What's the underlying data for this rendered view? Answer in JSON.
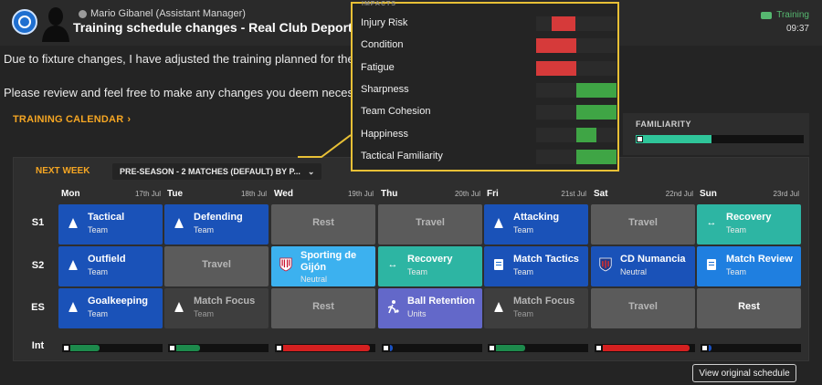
{
  "header": {
    "sender": "Mario Gibanel  (Assistant Manager)",
    "subject": "Training schedule changes - Real Club Deportivo de",
    "tag": "Training",
    "time": "09:37"
  },
  "message": {
    "line1": "Due to fixture changes, I have adjusted the training planned for the w",
    "line2": "Please review and feel free to make any changes you deem necessary."
  },
  "calendar_title": "TRAINING CALENDAR",
  "familiarity": {
    "label": "FAMILIARITY",
    "level": 0.45
  },
  "panel": {
    "next_week": "NEXT WEEK",
    "preset": "PRE-SEASON - 2 MATCHES (DEFAULT) BY P..."
  },
  "days": [
    {
      "name": "Mon",
      "date": "17th Jul"
    },
    {
      "name": "Tue",
      "date": "18th Jul"
    },
    {
      "name": "Wed",
      "date": "19th Jul"
    },
    {
      "name": "Thu",
      "date": "20th Jul"
    },
    {
      "name": "Fri",
      "date": "21st Jul"
    },
    {
      "name": "Sat",
      "date": "22nd Jul"
    },
    {
      "name": "Sun",
      "date": "23rd Jul"
    }
  ],
  "rows": [
    {
      "label": "S1",
      "sessions": [
        {
          "title": "Tactical",
          "sub": "Team",
          "style": "blue",
          "icon": "cone-icon"
        },
        {
          "title": "Defending",
          "sub": "Team",
          "style": "blue",
          "icon": "cone-icon"
        },
        {
          "title": "Rest",
          "sub": "",
          "style": "grey",
          "icon": ""
        },
        {
          "title": "Travel",
          "sub": "",
          "style": "grey",
          "icon": ""
        },
        {
          "title": "Attacking",
          "sub": "Team",
          "style": "blue",
          "icon": "cone-icon"
        },
        {
          "title": "Travel",
          "sub": "",
          "style": "grey",
          "icon": ""
        },
        {
          "title": "Recovery",
          "sub": "Team",
          "style": "teal",
          "icon": "recovery-arrows-icon"
        }
      ]
    },
    {
      "label": "S2",
      "sessions": [
        {
          "title": "Outfield",
          "sub": "Team",
          "style": "blue",
          "icon": "cone-icon"
        },
        {
          "title": "Travel",
          "sub": "",
          "style": "grey",
          "icon": ""
        },
        {
          "title": "Sporting de Gijón",
          "sub": "Neutral",
          "style": "lightblue",
          "icon": "sporting-gijon-crest-icon"
        },
        {
          "title": "Recovery",
          "sub": "Team",
          "style": "teal",
          "icon": "recovery-arrows-icon"
        },
        {
          "title": "Match Tactics",
          "sub": "Team",
          "style": "blue",
          "icon": "match-document-icon"
        },
        {
          "title": "CD Numancia",
          "sub": "Neutral",
          "style": "blue",
          "icon": "numancia-crest-icon"
        },
        {
          "title": "Match Review",
          "sub": "Team",
          "style": "brightblue",
          "icon": "match-document-icon"
        }
      ]
    },
    {
      "label": "ES",
      "sessions": [
        {
          "title": "Goalkeeping",
          "sub": "Team",
          "style": "blue",
          "icon": "cone-icon"
        },
        {
          "title": "Match Focus",
          "sub": "Team",
          "style": "darkgrey",
          "icon": "cone-icon"
        },
        {
          "title": "Rest",
          "sub": "",
          "style": "grey",
          "icon": ""
        },
        {
          "title": "Ball Retention",
          "sub": "Units",
          "style": "purple",
          "icon": "ball-retention-icon"
        },
        {
          "title": "Match Focus",
          "sub": "Team",
          "style": "darkgrey",
          "icon": "cone-icon"
        },
        {
          "title": "Travel",
          "sub": "",
          "style": "grey",
          "icon": ""
        },
        {
          "title": "Rest",
          "sub": "",
          "style": "grey",
          "icon": ""
        }
      ]
    }
  ],
  "intensity": {
    "label": "Int",
    "levels": [
      {
        "value": 0.32,
        "color": "#1d8a4c"
      },
      {
        "value": 0.26,
        "color": "#1d8a4c"
      },
      {
        "value": 0.95,
        "color": "#d42020"
      },
      {
        "value": 0.02,
        "color": "#1a52c4"
      },
      {
        "value": 0.32,
        "color": "#1d8a4c"
      },
      {
        "value": 0.95,
        "color": "#d42020"
      },
      {
        "value": 0.02,
        "color": "#1a52c4"
      }
    ]
  },
  "impacts": {
    "title": "IMPACTS",
    "rows": [
      {
        "label": "Injury Risk",
        "value": 0.6
      },
      {
        "label": "Condition",
        "value": -1.0
      },
      {
        "label": "Fatigue",
        "value": -1.0
      },
      {
        "label": "Sharpness",
        "value": 1.0
      },
      {
        "label": "Team Cohesion",
        "value": 1.0
      },
      {
        "label": "Happiness",
        "value": 0.5
      },
      {
        "label": "Tactical Familiarity",
        "value": 1.0
      }
    ],
    "colors": {
      "positive": "#3fa545",
      "negative": "#d63a3a"
    }
  },
  "view_button": "View original schedule",
  "colors": {
    "blue": "#1a52b8",
    "brightblue": "#1f7fe0",
    "lightblue": "#3cb1ef",
    "teal": "#2db5a3",
    "purple": "#6368c9",
    "grey": "#5b5b5b",
    "darkgrey": "#3e3e3e",
    "accent": "#f5a623"
  }
}
